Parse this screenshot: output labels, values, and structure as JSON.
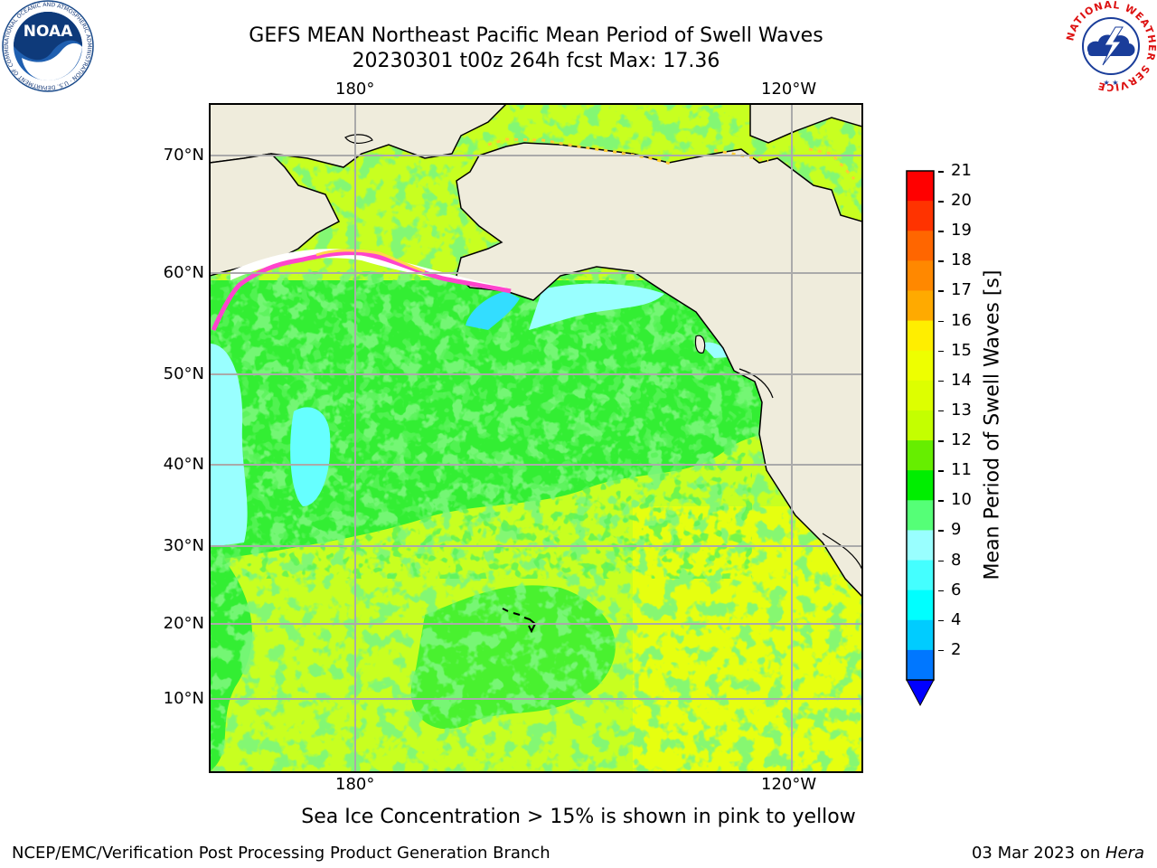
{
  "header": {
    "title_line1": "GEFS MEAN Northeast Pacific Mean Period of Swell Waves",
    "title_line2": "20230301 t00z 264h fcst   Max: 17.36"
  },
  "logos": {
    "left": "NOAA",
    "left_ring": "NATIONAL OCEANIC AND ATMOSPHERIC ADMINISTRATION · U.S. DEPARTMENT OF COMMERCE",
    "right_ring": "NATIONAL WEATHER SERVICE"
  },
  "map": {
    "lon_labels": [
      "180°",
      "120°W"
    ],
    "lat_labels": [
      "70°N",
      "60°N",
      "50°N",
      "40°N",
      "30°N",
      "20°N",
      "10°N"
    ],
    "colors": {
      "land": "#efecdc",
      "ocean_green": "#33ee33",
      "ocean_lime": "#ccff33",
      "ocean_yellow": "#eeff22",
      "ocean_cyan": "#99ffff",
      "ice_pink": "#ff66cc",
      "ice_yellow": "#ffdd44",
      "grid": "#aaaaaa"
    }
  },
  "colorbar": {
    "label": "Mean Period of Swell Waves [s]",
    "ticks": [
      "21",
      "20",
      "19",
      "18",
      "17",
      "16",
      "15",
      "14",
      "13",
      "12",
      "11",
      "10",
      "9",
      "8",
      "6",
      "4",
      "2"
    ],
    "bins": [
      "#ff0000",
      "#ff3300",
      "#ff6600",
      "#ff8800",
      "#ffaa00",
      "#ffee00",
      "#eeff00",
      "#ddff00",
      "#c4ff00",
      "#66ee00",
      "#00ee00",
      "#55ff77",
      "#99ffff",
      "#44ffff",
      "#00ffff",
      "#00ccff",
      "#0077ff"
    ],
    "under_color": "#0000ff"
  },
  "notes": {
    "sea_ice": "Sea Ice Concentration > 15% is shown in pink to yellow"
  },
  "footer": {
    "left": "NCEP/EMC/Verification Post Processing Product Generation Branch",
    "right_prefix": "03 Mar 2023 on ",
    "right_italic": "Hera"
  }
}
